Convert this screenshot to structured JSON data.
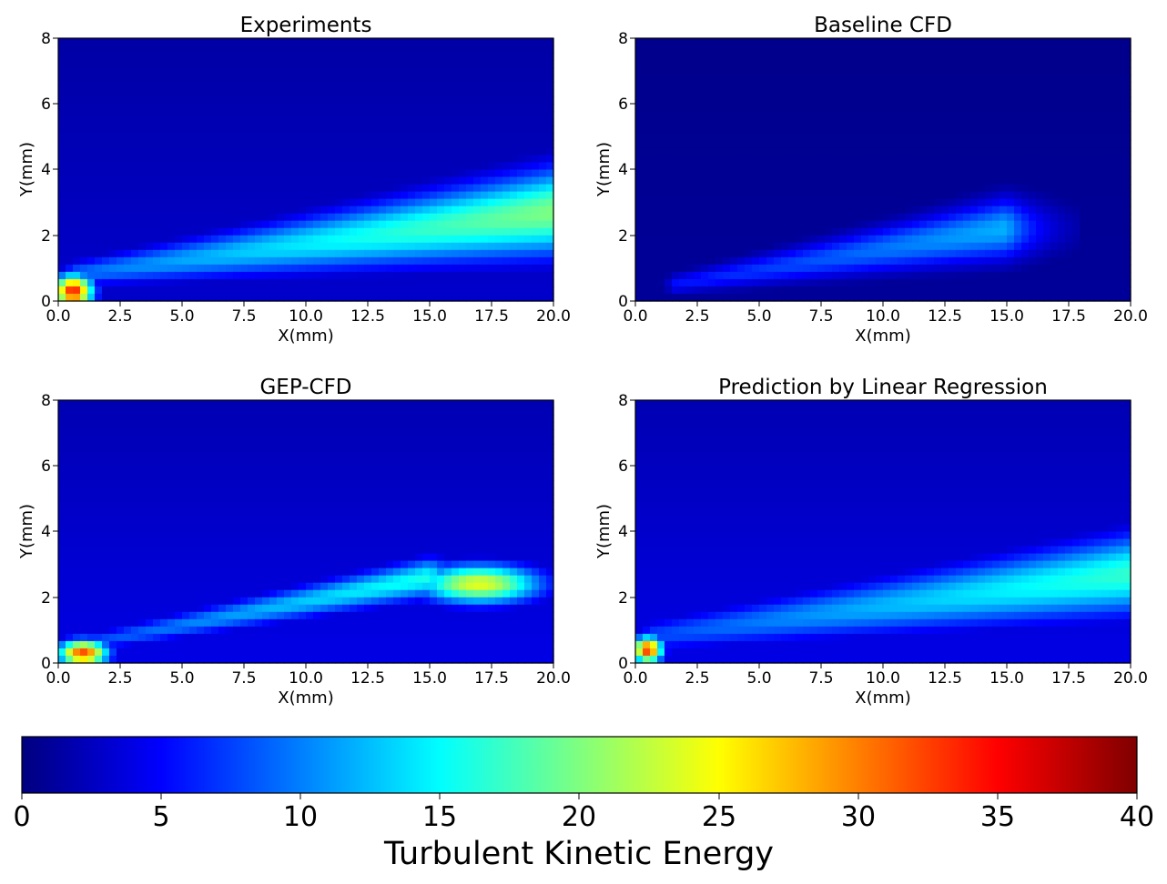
{
  "chart_data": [
    {
      "type": "heatmap",
      "title": "Experiments",
      "xlabel": "X(mm)",
      "ylabel": "Y(mm)",
      "xlim": [
        0,
        20
      ],
      "ylim": [
        0,
        8
      ],
      "xticks": [
        "0.0",
        "2.5",
        "5.0",
        "7.5",
        "10.0",
        "12.5",
        "15.0",
        "17.5",
        "20.0"
      ],
      "yticks": [
        "0",
        "2",
        "4",
        "6",
        "8"
      ],
      "features": [
        {
          "kind": "hotspot",
          "x": 0.6,
          "y": 0.3,
          "sx": 0.8,
          "sy": 0.5,
          "value": 34
        },
        {
          "kind": "shear_layer",
          "x_start": 0.5,
          "y_start": 0.8,
          "x_end": 20,
          "y_end": 2.7,
          "peak_value": 20,
          "width_start": 0.4,
          "width_end": 1.3
        },
        {
          "kind": "background",
          "value": 3
        }
      ]
    },
    {
      "type": "heatmap",
      "title": "Baseline CFD",
      "xlabel": "X(mm)",
      "ylabel": "Y(mm)",
      "xlim": [
        0,
        20
      ],
      "ylim": [
        0,
        8
      ],
      "xticks": [
        "0.0",
        "2.5",
        "5.0",
        "7.5",
        "10.0",
        "12.5",
        "15.0",
        "17.5",
        "20.0"
      ],
      "yticks": [
        "0",
        "2",
        "4",
        "6",
        "8"
      ],
      "features": [
        {
          "kind": "shear_layer",
          "x_start": 1.5,
          "y_start": 0.5,
          "x_end": 15,
          "y_end": 2.2,
          "peak_value": 12,
          "width_start": 0.3,
          "width_end": 0.9
        },
        {
          "kind": "background",
          "value": 1
        }
      ]
    },
    {
      "type": "heatmap",
      "title": "GEP-CFD",
      "xlabel": "X(mm)",
      "ylabel": "Y(mm)",
      "xlim": [
        0,
        20
      ],
      "ylim": [
        0,
        8
      ],
      "xticks": [
        "0.0",
        "2.5",
        "5.0",
        "7.5",
        "10.0",
        "12.5",
        "15.0",
        "17.5",
        "20.0"
      ],
      "yticks": [
        "0",
        "2",
        "4",
        "6",
        "8"
      ],
      "features": [
        {
          "kind": "hotspot",
          "x": 1.0,
          "y": 0.3,
          "sx": 1.0,
          "sy": 0.4,
          "value": 32
        },
        {
          "kind": "shear_layer",
          "x_start": 0.5,
          "y_start": 0.5,
          "x_end": 15,
          "y_end": 2.6,
          "peak_value": 16,
          "width_start": 0.3,
          "width_end": 0.6
        },
        {
          "kind": "hotspot",
          "x": 17,
          "y": 2.4,
          "sx": 2.5,
          "sy": 0.6,
          "value": 24
        },
        {
          "kind": "background",
          "value": 4
        }
      ]
    },
    {
      "type": "heatmap",
      "title": "Prediction by Linear Regression",
      "xlabel": "X(mm)",
      "ylabel": "Y(mm)",
      "xlim": [
        0,
        20
      ],
      "ylim": [
        0,
        8
      ],
      "xticks": [
        "0.0",
        "2.5",
        "5.0",
        "7.5",
        "10.0",
        "12.5",
        "15.0",
        "17.5",
        "20.0"
      ],
      "yticks": [
        "0",
        "2",
        "4",
        "6",
        "8"
      ],
      "features": [
        {
          "kind": "hotspot",
          "x": 0.5,
          "y": 0.4,
          "sx": 0.6,
          "sy": 0.4,
          "value": 33
        },
        {
          "kind": "shear_layer",
          "x_start": 0.5,
          "y_start": 0.8,
          "x_end": 20,
          "y_end": 2.7,
          "peak_value": 17,
          "width_start": 0.5,
          "width_end": 1.2
        },
        {
          "kind": "background",
          "value": 4
        }
      ]
    }
  ],
  "colorbar": {
    "label": "Turbulent Kinetic Energy",
    "min": 0,
    "max": 40,
    "ticks": [
      "0",
      "5",
      "10",
      "15",
      "20",
      "25",
      "30",
      "35",
      "40"
    ],
    "colormap": "jet",
    "colors": [
      "#00007f",
      "#0000ff",
      "#007fff",
      "#00ffff",
      "#7fff7f",
      "#ffff00",
      "#ff7f00",
      "#ff0000",
      "#7f0000"
    ]
  }
}
